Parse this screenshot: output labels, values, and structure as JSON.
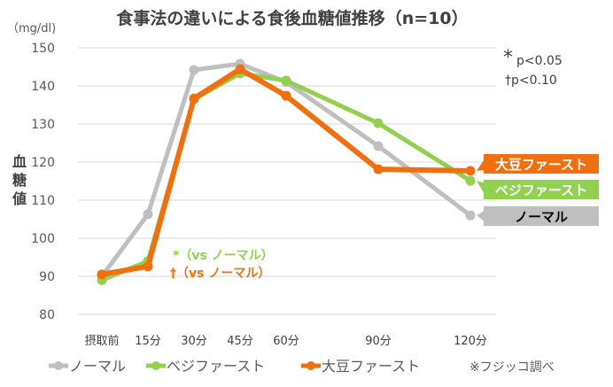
{
  "chart_data": {
    "type": "line",
    "title": "食事法の違いによる食後血糖値推移（n=10）",
    "unit": "（mg/dl)",
    "ylabel": "血糖値",
    "ylim": [
      80,
      150
    ],
    "yticks": [
      80,
      90,
      100,
      110,
      120,
      130,
      140,
      150
    ],
    "x": [
      0,
      15,
      30,
      45,
      60,
      90,
      120
    ],
    "xlabels": [
      "摂取前",
      "15分",
      "30分",
      "45分",
      "60分",
      "90分",
      "120分"
    ],
    "series": [
      {
        "name": "ノーマル",
        "color": "#bfbfbf",
        "values": [
          90,
          106.3,
          144.2,
          145.8,
          141,
          124.2,
          106
        ]
      },
      {
        "name": "ベジファースト",
        "color": "#92d050",
        "values": [
          89,
          94,
          136.5,
          143.3,
          141.4,
          130.2,
          115.1
        ]
      },
      {
        "name": "大豆ファースト",
        "color": "#f07010",
        "values": [
          90.5,
          92.6,
          136.7,
          144.4,
          137.4,
          118.1,
          117.7
        ]
      }
    ],
    "end_labels": [
      "大豆ファースト",
      "ベジファースト",
      "ノーマル"
    ],
    "annotations": {
      "star": "*（vs ノーマル）",
      "dagger": "†（vs ノーマル）",
      "sig1_mark": "*",
      "sig1": "p<0.05",
      "sig2": "†p<0.10"
    },
    "source": "※フジッコ調べ",
    "grid": true,
    "legend": "bottom"
  }
}
